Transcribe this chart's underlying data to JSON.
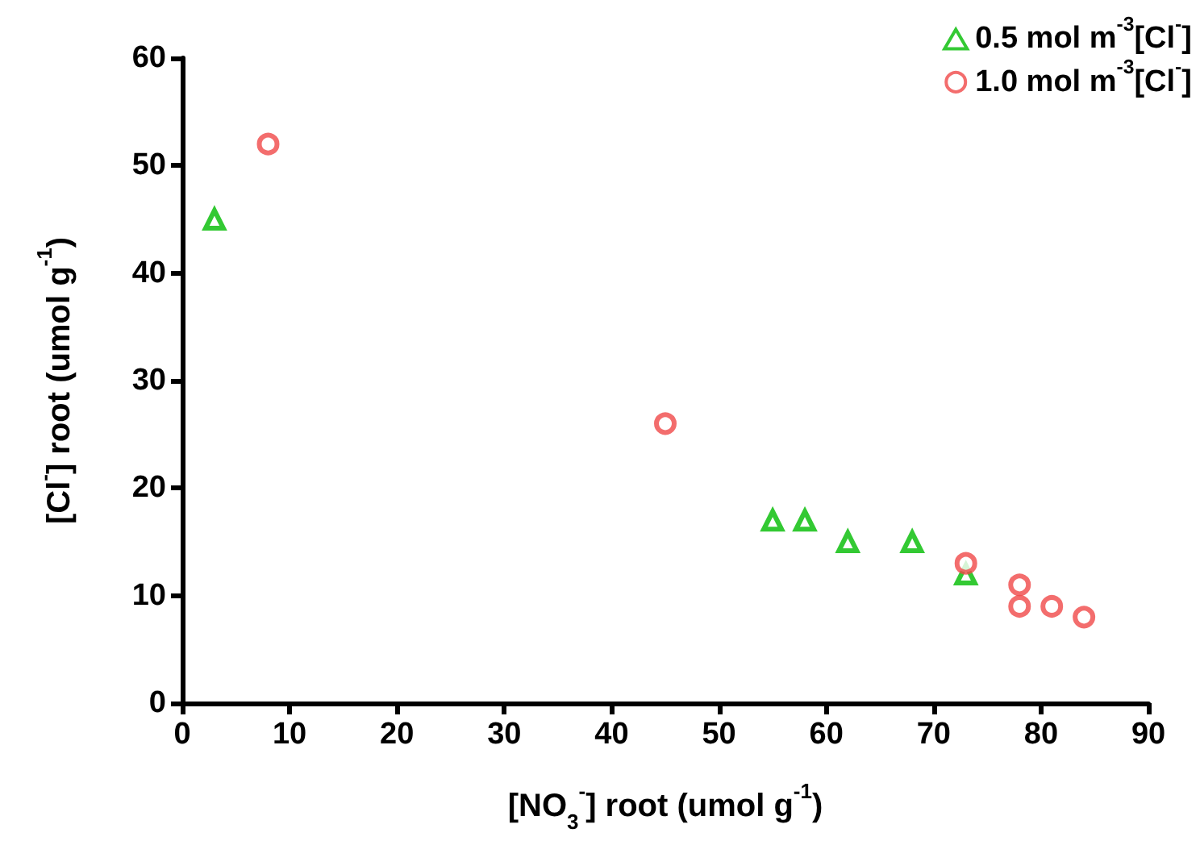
{
  "chart_data": {
    "type": "scatter",
    "xlabel": "[NO$_{3}$$^{-}$] root (umol g$^{-1}$)",
    "ylabel": "[Cl$^{-}$] root (umol g$^{-1}$)",
    "xlim": [
      0,
      90
    ],
    "xticks": [
      0,
      10,
      20,
      30,
      40,
      50,
      60,
      70,
      80,
      90
    ],
    "ylim": [
      0,
      60
    ],
    "yticks": [
      0,
      10,
      20,
      30,
      40,
      50,
      60
    ],
    "grid": false,
    "legend": "top right",
    "series": [
      {
        "name": "0.5 mol m$^{-3}$[Cl$^{-}$]",
        "color": "#00bb00",
        "marker": "triangle",
        "x": [
          3,
          55,
          58,
          62,
          68,
          73
        ],
        "values": [
          45,
          17,
          17,
          15,
          15,
          12
        ]
      },
      {
        "name": "1.0 mol m$^{-3}$[Cl$^{-}$]",
        "color": "#f04848",
        "marker": "circle",
        "x": [
          8,
          45,
          73,
          78,
          78,
          81,
          84
        ],
        "values": [
          52,
          26,
          13,
          11,
          9,
          9,
          8
        ]
      }
    ]
  }
}
